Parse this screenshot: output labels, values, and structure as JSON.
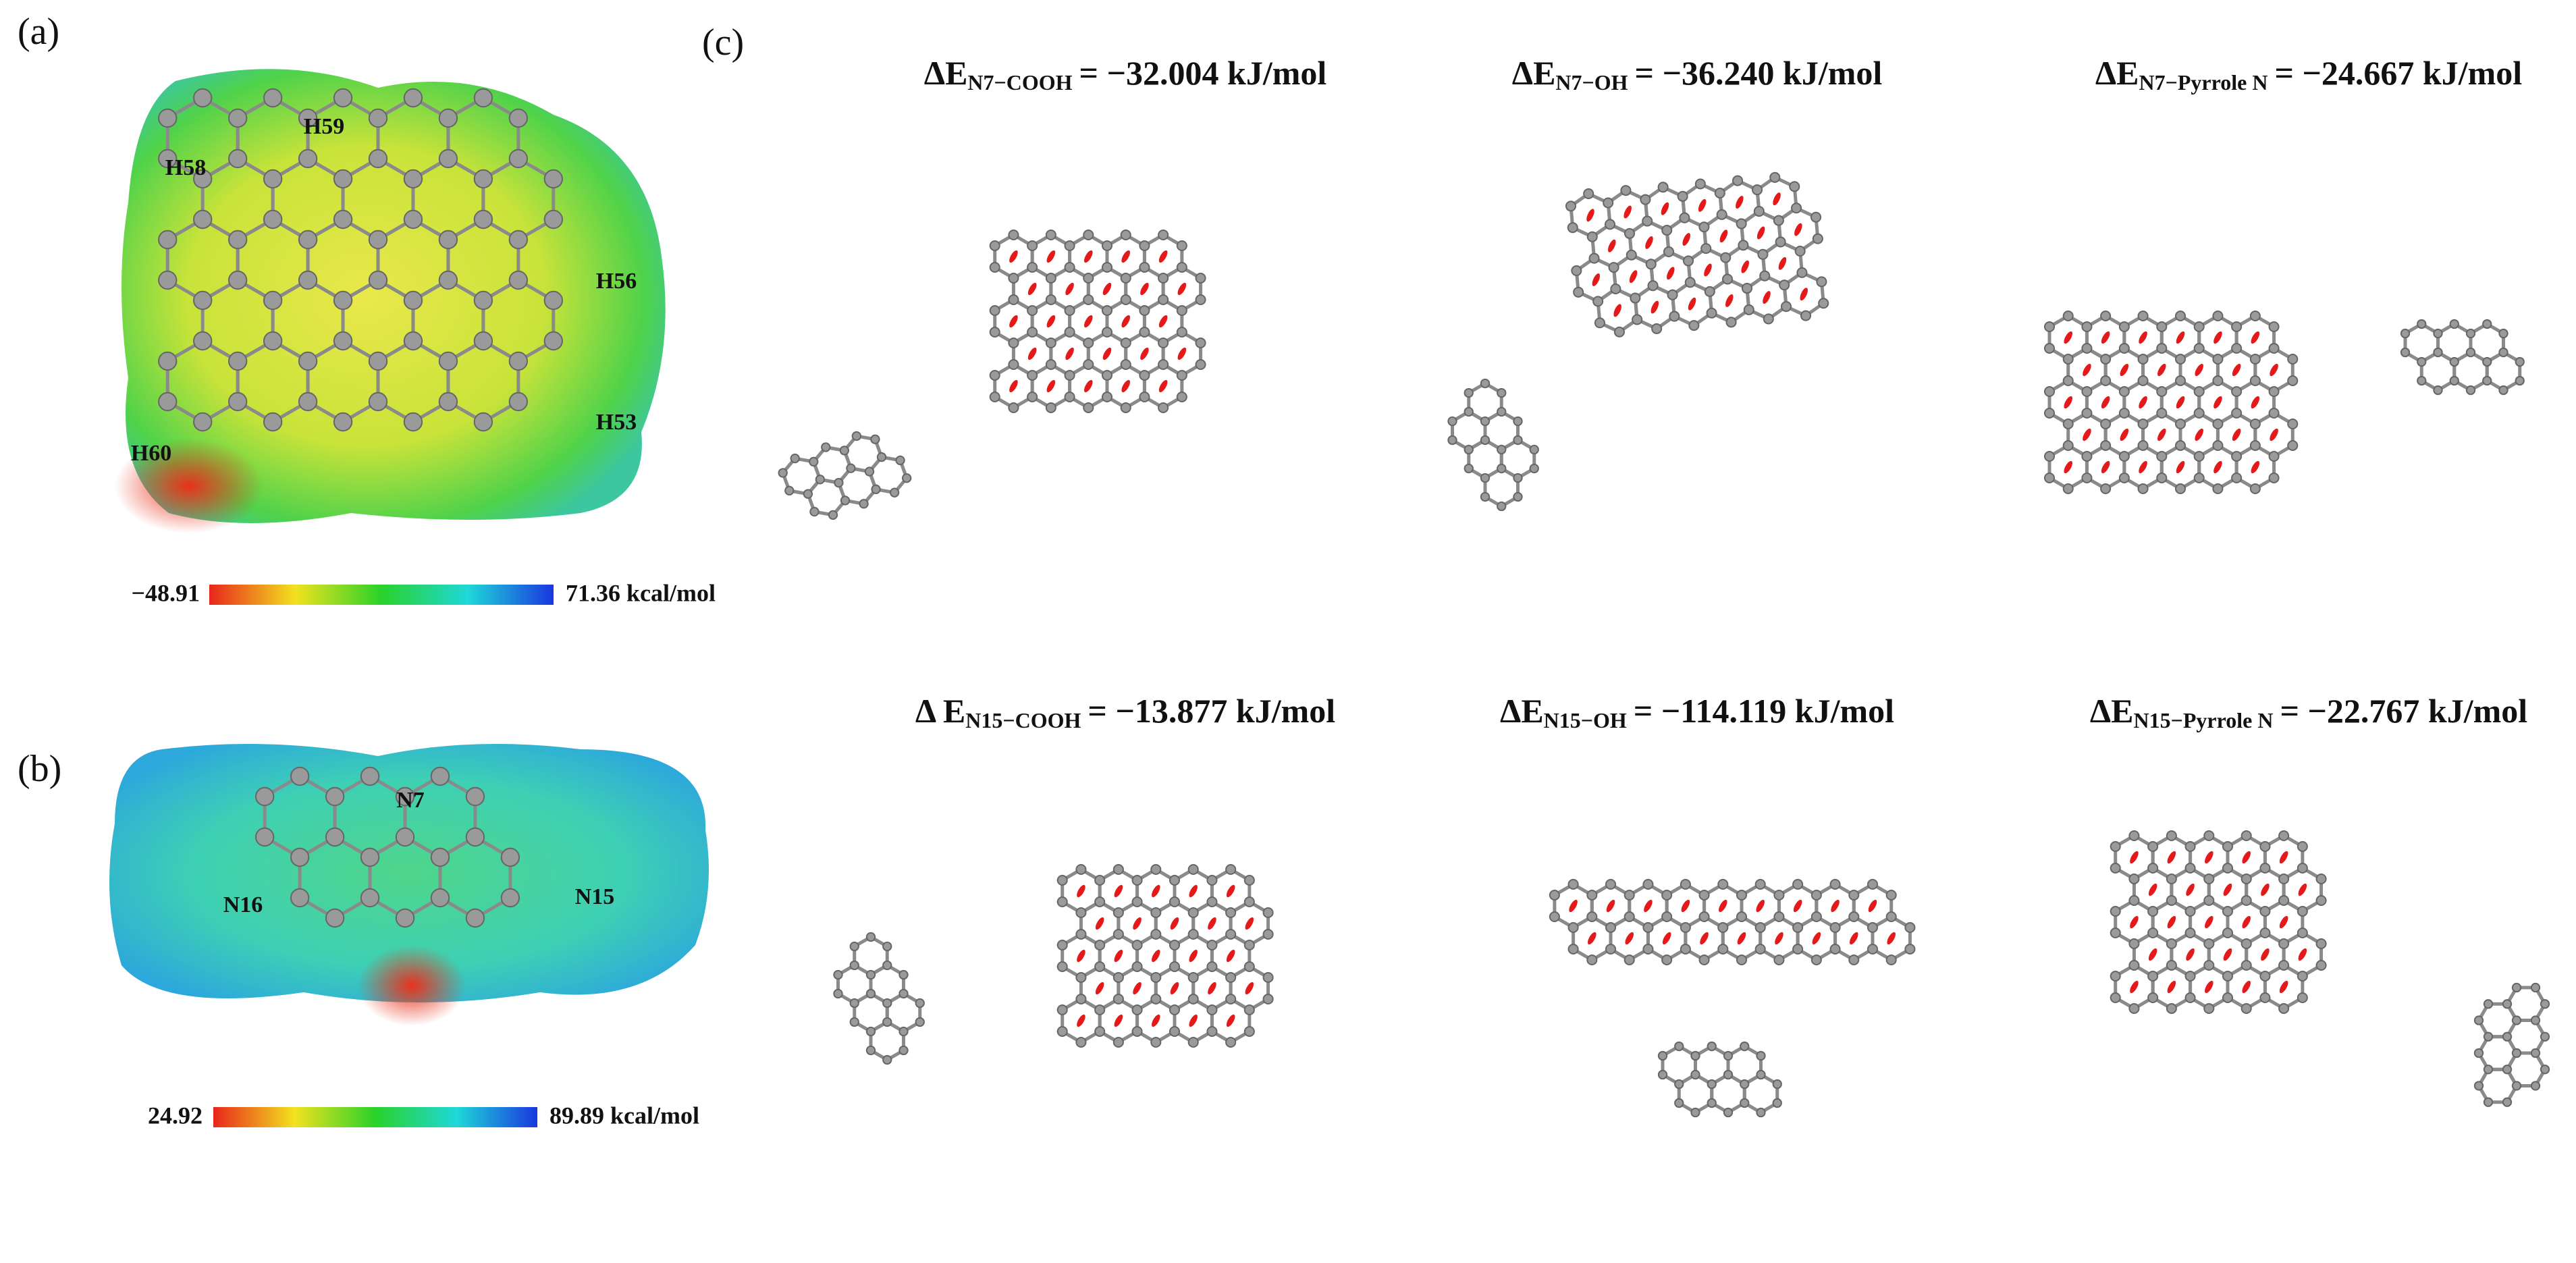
{
  "panels": {
    "a": {
      "label": "(a)",
      "atoms": [
        "H59",
        "H58",
        "H56",
        "H53",
        "H60"
      ],
      "scale_min": "−48.91",
      "scale_max": "71.36 kcal/mol"
    },
    "b": {
      "label": "(b)",
      "atoms": [
        "N7",
        "N16",
        "N15"
      ],
      "scale_min": "24.92",
      "scale_max": "89.89 kcal/mol"
    },
    "c": {
      "label": "(c)",
      "energies": [
        {
          "symbol": "ΔE",
          "subscript": "N7−COOH",
          "value": "= −32.004 kJ/mol"
        },
        {
          "symbol": "ΔE",
          "subscript": "N7−OH",
          "value": "= −36.240 kJ/mol"
        },
        {
          "symbol": "ΔE",
          "subscript": "N7−Pyrrole N",
          "value": "= −24.667 kJ/mol"
        },
        {
          "symbol": "Δ E",
          "subscript": "N15−COOH",
          "value": "= −13.877 kJ/mol"
        },
        {
          "symbol": "ΔE",
          "subscript": "N15−OH",
          "value": "= −114.119 kJ/mol"
        },
        {
          "symbol": "ΔE",
          "subscript": "N15−Pyrrole N",
          "value": "= −22.767 kJ/mol"
        }
      ]
    }
  }
}
